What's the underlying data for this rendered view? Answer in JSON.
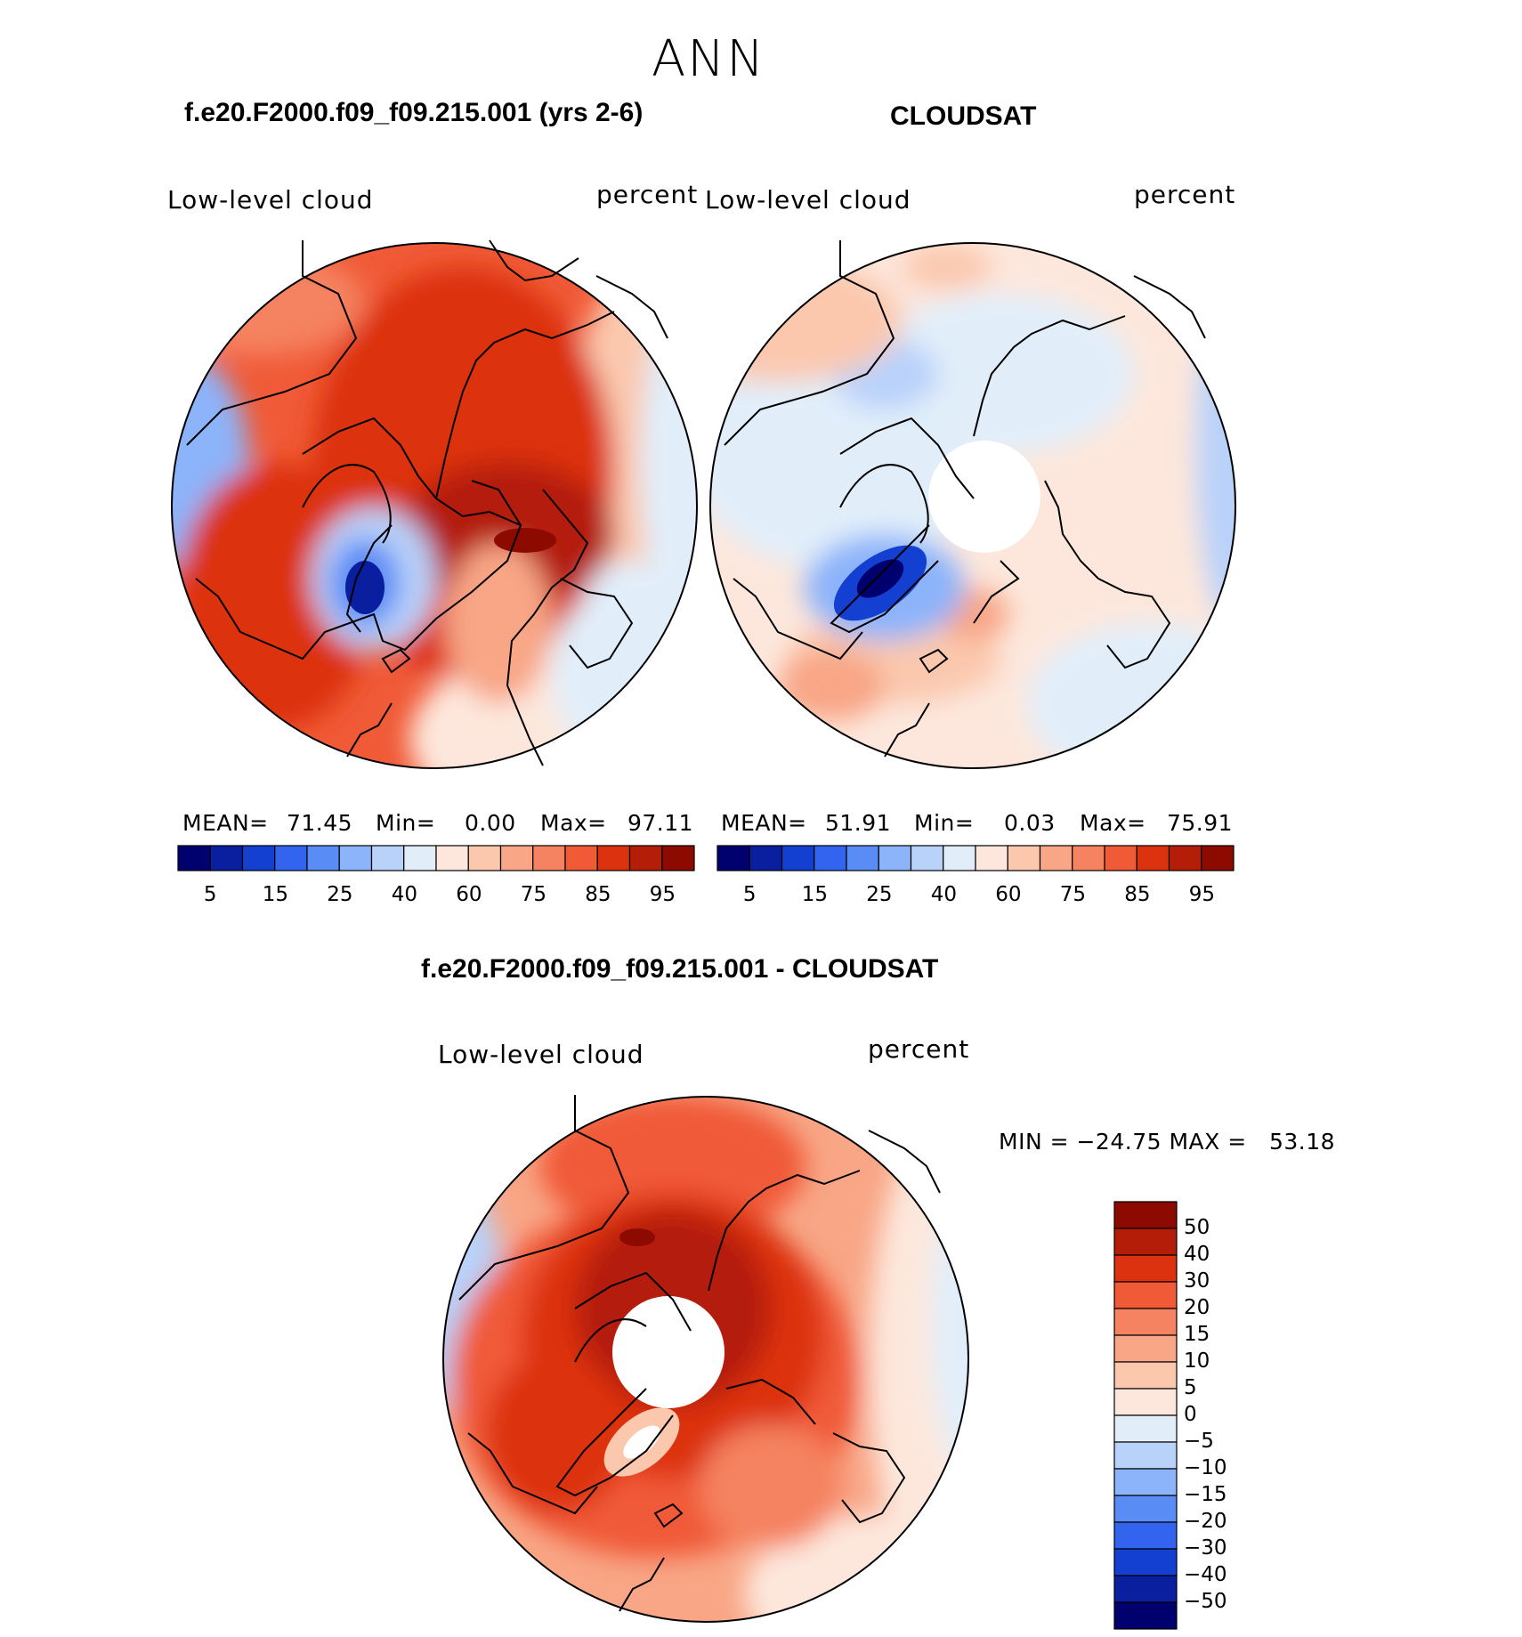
{
  "title": "ANN",
  "palette": {
    "levels_abs": [
      "#00006e",
      "#0a1ea0",
      "#1440d2",
      "#3264f0",
      "#5a8cf5",
      "#8cb4fa",
      "#b9d2fa",
      "#e1eefa",
      "#fde7dc",
      "#fbc8ae",
      "#f8a686",
      "#f58260",
      "#f05a37",
      "#dc3210",
      "#b41e08",
      "#8c0a00"
    ],
    "levels_diff": [
      "#8c0a00",
      "#b41e08",
      "#dc3210",
      "#f05a37",
      "#f58260",
      "#f8a686",
      "#fbc8ae",
      "#fde7dc",
      "#e1eefa",
      "#b9d2fa",
      "#8cb4fa",
      "#5a8cf5",
      "#3264f0",
      "#1440d2",
      "#0a1ea0",
      "#00006e"
    ]
  },
  "panels": [
    {
      "case": "f.e20.F2000.f09_f09.215.001 (yrs 2-6)",
      "variable": "Low-level cloud",
      "units": "percent",
      "stats": {
        "mean_label": "MEAN=",
        "mean": "71.45",
        "min_label": "Min=",
        "min": "0.00",
        "max_label": "Max=",
        "max": "97.11"
      }
    },
    {
      "case": "CLOUDSAT",
      "variable": "Low-level cloud",
      "units": "percent",
      "stats": {
        "mean_label": "MEAN=",
        "mean": "51.91",
        "min_label": "Min=",
        "min": "0.03",
        "max_label": "Max=",
        "max": "75.91"
      }
    }
  ],
  "colorbar_ticks": [
    "5",
    "15",
    "25",
    "40",
    "60",
    "75",
    "85",
    "95"
  ],
  "diff": {
    "title": "f.e20.F2000.f09_f09.215.001 - CLOUDSAT",
    "variable": "Low-level cloud",
    "units": "percent",
    "minmax": "MIN = −24.75 MAX =   53.18",
    "ticks": [
      "50",
      "40",
      "30",
      "20",
      "15",
      "10",
      "5",
      "0",
      "−5",
      "−10",
      "−15",
      "−20",
      "−30",
      "−40",
      "−50"
    ]
  },
  "chart_data": [
    {
      "type": "heatmap",
      "projection": "north polar stereographic",
      "title": "f.e20.F2000.f09_f09.215.001 (yrs 2-6)",
      "field": "Low-level cloud",
      "units": "percent",
      "contour_levels": [
        5,
        10,
        15,
        20,
        25,
        30,
        40,
        50,
        60,
        65,
        75,
        80,
        85,
        90,
        95
      ],
      "colorbar_labels": [
        5,
        15,
        25,
        40,
        60,
        75,
        85,
        95
      ],
      "mean": 71.45,
      "min": 0.0,
      "max": 97.11
    },
    {
      "type": "heatmap",
      "projection": "north polar stereographic",
      "title": "CLOUDSAT",
      "field": "Low-level cloud",
      "units": "percent",
      "contour_levels": [
        5,
        10,
        15,
        20,
        25,
        30,
        40,
        50,
        60,
        65,
        75,
        80,
        85,
        90,
        95
      ],
      "colorbar_labels": [
        5,
        15,
        25,
        40,
        60,
        75,
        85,
        95
      ],
      "mean": 51.91,
      "min": 0.03,
      "max": 75.91
    },
    {
      "type": "heatmap",
      "projection": "north polar stereographic",
      "title": "f.e20.F2000.f09_f09.215.001 - CLOUDSAT",
      "field": "Low-level cloud",
      "units": "percent",
      "contour_levels": [
        50,
        40,
        30,
        20,
        15,
        10,
        5,
        0,
        -5,
        -10,
        -15,
        -20,
        -30,
        -40,
        -50
      ],
      "min": -24.75,
      "max": 53.18
    }
  ]
}
